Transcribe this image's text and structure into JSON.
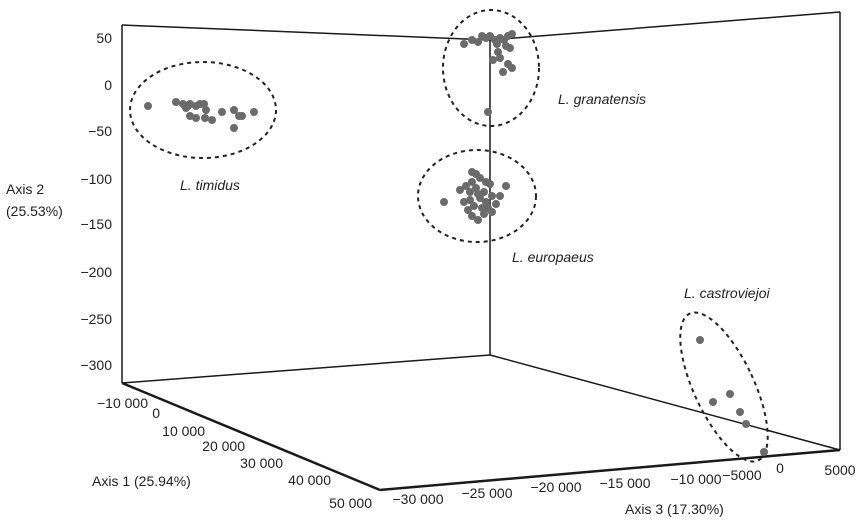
{
  "chart_data": {
    "type": "scatter",
    "projection": "3d",
    "axes": {
      "axis1": {
        "label": "Axis 1 (25.94%)",
        "ticks": [
          "−10 000",
          "0",
          "10 000",
          "20 000",
          "30 000",
          "40 000",
          "50 000"
        ]
      },
      "axis2": {
        "label_line1": "Axis 2",
        "label_line2": "(25.53%)",
        "ticks": [
          "50",
          "0",
          "−50",
          "−100",
          "−150",
          "−200",
          "−250",
          "−300"
        ]
      },
      "axis3": {
        "label": "Axis 3 (17.30%)",
        "ticks": [
          "−30 000",
          "−25 000",
          "−20 000",
          "−15 000",
          "−10 000",
          "−5000",
          "0",
          "5000"
        ]
      }
    },
    "groups": [
      {
        "name": "L. timidus",
        "axis2_range": [
          -40,
          -20
        ],
        "n_points": 18
      },
      {
        "name": "L. granatensis",
        "axis2_range": [
          -45,
          50
        ],
        "n_points": 24
      },
      {
        "name": "L. europaeus",
        "axis2_range": [
          -145,
          -95
        ],
        "n_points": 38
      },
      {
        "name": "L. castroviejoi",
        "n_points": 6
      }
    ],
    "grid": false,
    "legend": "none"
  }
}
